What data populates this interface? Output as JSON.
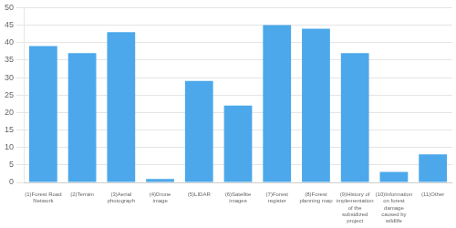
{
  "chart_data": {
    "type": "bar",
    "categories": [
      "(1)Forest Road\nNetwork",
      "(2)Terrain",
      "(3)Aerial\nphotograph",
      "(4)Drone\nimage",
      "(5)LIDAR",
      "(6)Satellite\nimages",
      "(7)Forest\nregister",
      "(8)Forest\nplanning map",
      "(9)History of\nimplementation\nof the\nsubsidized\nproject",
      "(10)Information\non forest\ndamage\ncaused by\nwildlife",
      "(11)Other"
    ],
    "values": [
      39,
      37,
      43,
      1,
      29,
      22,
      45,
      44,
      37,
      3,
      8
    ],
    "color": "#4CA8EA",
    "ylim": [
      0,
      50
    ],
    "yticks": [
      0,
      5,
      10,
      15,
      20,
      25,
      30,
      35,
      40,
      45,
      50
    ],
    "grid": true
  }
}
